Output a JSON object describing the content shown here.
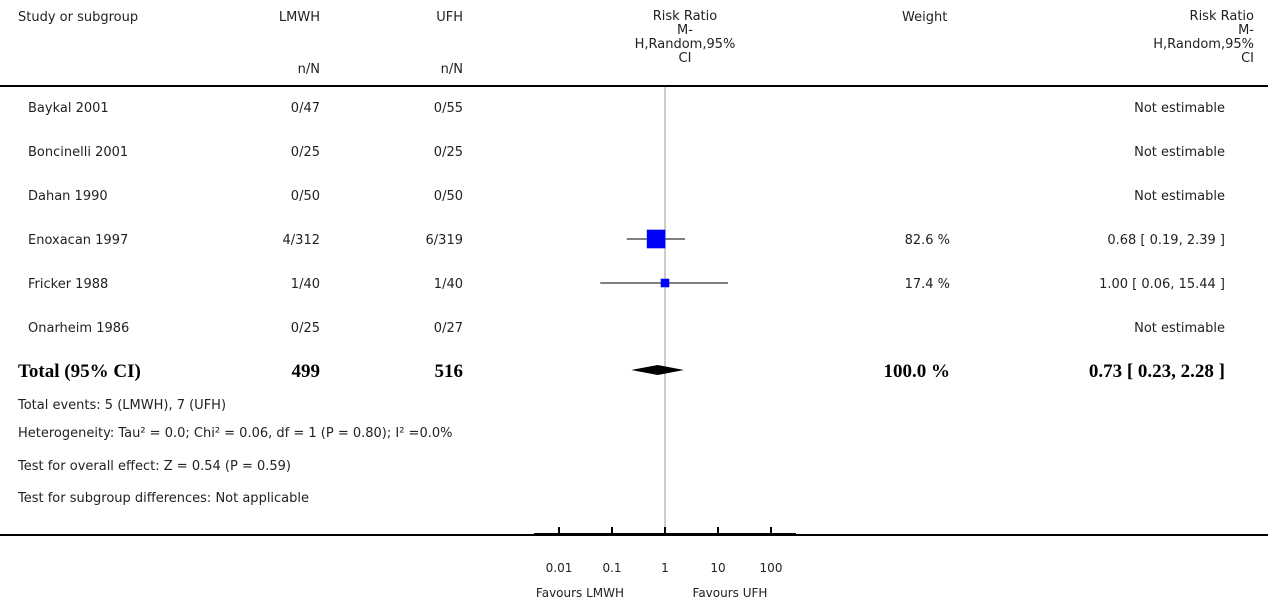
{
  "header": {
    "study": "Study or subgroup",
    "group1": "LMWH",
    "group2": "UFH",
    "group1_sub": "n/N",
    "group2_sub": "n/N",
    "effect_title": "Risk Ratio",
    "effect_line2": "M-",
    "effect_line3": "H,Random,95%",
    "effect_line4": "CI",
    "weight": "Weight",
    "effect2_title": "Risk Ratio",
    "effect2_line2": "M-",
    "effect2_line3": "H,Random,95%",
    "effect2_line4": "CI"
  },
  "studies": [
    {
      "name": "Baykal 2001",
      "lmwh": "0/47",
      "ufh": "0/55",
      "weight": "",
      "ci_text": "Not estimable"
    },
    {
      "name": "Boncinelli 2001",
      "lmwh": "0/25",
      "ufh": "0/25",
      "weight": "",
      "ci_text": "Not estimable"
    },
    {
      "name": "Dahan 1990",
      "lmwh": "0/50",
      "ufh": "0/50",
      "weight": "",
      "ci_text": "Not estimable"
    },
    {
      "name": "Enoxacan 1997",
      "lmwh": "4/312",
      "ufh": "6/319",
      "weight": "82.6 %",
      "ci_text": "0.68 [ 0.19, 2.39 ]"
    },
    {
      "name": "Fricker 1988",
      "lmwh": "1/40",
      "ufh": "1/40",
      "weight": "17.4 %",
      "ci_text": "1.00 [ 0.06, 15.44 ]"
    },
    {
      "name": "Onarheim 1986",
      "lmwh": "0/25",
      "ufh": "0/27",
      "weight": "",
      "ci_text": "Not estimable"
    }
  ],
  "total": {
    "label": "Total (95% CI)",
    "lmwh": "499",
    "ufh": "516",
    "weight": "100.0 %",
    "ci_text": "0.73 [ 0.23, 2.28 ]"
  },
  "notes": {
    "events": "Total events: 5 (LMWH), 7 (UFH)",
    "heterogeneity": "Heterogeneity: Tau² = 0.0; Chi² = 0.06, df = 1 (P = 0.80); I² =0.0%",
    "overall": "Test for overall effect: Z = 0.54 (P = 0.59)",
    "subgroup": "Test for subgroup differences: Not applicable"
  },
  "axis": {
    "favours_left": "Favours LMWH",
    "favours_right": "Favours UFH"
  },
  "colors": {
    "marker": "#0000ff",
    "line": "#000000",
    "null_line": "#9a9a9a"
  },
  "chart_data": {
    "type": "forest",
    "scale": "log",
    "xlim": [
      0.01,
      100
    ],
    "ticks": [
      0.01,
      0.1,
      1,
      10,
      100
    ],
    "tick_labels": [
      "0.01",
      "0.1",
      "1",
      "10",
      "100"
    ],
    "estimates": [
      {
        "study": "Enoxacan 1997",
        "rr": 0.68,
        "lower": 0.19,
        "upper": 2.39,
        "weight": 82.6
      },
      {
        "study": "Fricker 1988",
        "rr": 1.0,
        "lower": 0.06,
        "upper": 15.44,
        "weight": 17.4
      }
    ],
    "pooled": {
      "rr": 0.73,
      "lower": 0.23,
      "upper": 2.28
    }
  }
}
